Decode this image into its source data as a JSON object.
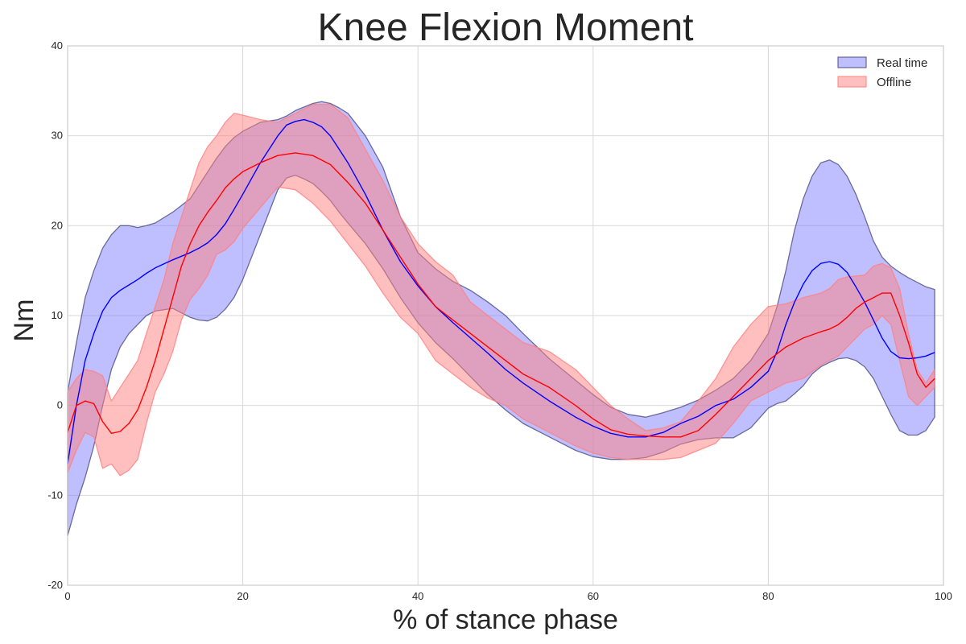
{
  "chart_data": {
    "type": "line",
    "title": "Knee Flexion Moment",
    "xlabel": "% of stance phase",
    "ylabel": "Nm",
    "xlim": [
      0,
      100
    ],
    "ylim": [
      -20,
      40
    ],
    "xticks": [
      0,
      20,
      40,
      60,
      80,
      100
    ],
    "yticks": [
      -20,
      -10,
      0,
      10,
      20,
      30,
      40
    ],
    "grid": true,
    "legend_position": "top-right",
    "series": [
      {
        "name": "Real time",
        "fill_color": "#7f7fff",
        "edge_color": "#4d4d80",
        "line_color": "#0000ff",
        "x": [
          0,
          1,
          2,
          3,
          4,
          5,
          6,
          7,
          8,
          9,
          10,
          12,
          14,
          15,
          16,
          17,
          18,
          19,
          20,
          22,
          24,
          25,
          26,
          27,
          28,
          29,
          30,
          31,
          32,
          34,
          36,
          38,
          40,
          42,
          44,
          46,
          48,
          50,
          52,
          55,
          58,
          60,
          62,
          64,
          66,
          68,
          70,
          72,
          74,
          76,
          78,
          80,
          81,
          82,
          83,
          84,
          85,
          86,
          87,
          88,
          89,
          90,
          91,
          92,
          93,
          94,
          95,
          96,
          97,
          98,
          99
        ],
        "mean": [
          -6.5,
          0,
          5,
          8,
          10.5,
          12,
          12.8,
          13.4,
          14,
          14.7,
          15.3,
          16.2,
          17,
          17.5,
          18.1,
          19,
          20.2,
          21.8,
          23.5,
          27,
          30,
          31.2,
          31.6,
          31.8,
          31.5,
          31,
          30,
          28.5,
          27,
          23.5,
          19.5,
          16,
          13.3,
          11,
          9.2,
          7.5,
          5.8,
          4,
          2.5,
          0.5,
          -1.3,
          -2.3,
          -3.1,
          -3.5,
          -3.5,
          -3,
          -2,
          -1.2,
          0,
          0.7,
          2,
          3.8,
          6,
          9,
          11.5,
          13.5,
          15,
          15.8,
          16,
          15.7,
          14.8,
          13.2,
          11.5,
          9.5,
          7.5,
          6,
          5.3,
          5.2,
          5.3,
          5.5,
          5.9
        ],
        "upper": [
          1.5,
          7,
          12,
          15,
          17.5,
          19,
          20,
          20,
          19.8,
          20,
          20.3,
          21.5,
          23,
          24.5,
          26,
          27.5,
          28.8,
          29.8,
          30.5,
          31.5,
          31.8,
          32.2,
          32.8,
          33.2,
          33.6,
          33.8,
          33.6,
          33.1,
          32.5,
          30,
          26.5,
          21,
          17,
          15.2,
          13.8,
          12.8,
          11.5,
          10,
          8,
          5.2,
          2.8,
          1.2,
          -0.2,
          -1,
          -1.3,
          -0.8,
          -0.2,
          0.6,
          1.7,
          3,
          5,
          8,
          11,
          15,
          19.5,
          23,
          25.5,
          27,
          27.3,
          26.8,
          25.5,
          23.5,
          21,
          18.3,
          16.5,
          15.5,
          14.8,
          14.2,
          13.7,
          13.2,
          12.9
        ],
        "lower": [
          -14.5,
          -11,
          -8,
          -4.5,
          0,
          4,
          6.5,
          8,
          9,
          10,
          10.5,
          10.8,
          9.8,
          9.5,
          9.4,
          9.8,
          10.7,
          12,
          14,
          19,
          24,
          25.3,
          25.6,
          25.2,
          24.7,
          23.8,
          22.8,
          21.5,
          20.3,
          18,
          15.2,
          12,
          9.2,
          7,
          5.2,
          3.2,
          1.2,
          -0.5,
          -2,
          -3.5,
          -5,
          -5.7,
          -6,
          -6,
          -5.8,
          -5.2,
          -4.3,
          -3.8,
          -3.6,
          -3.6,
          -2.5,
          -0.3,
          0.2,
          0.5,
          1.3,
          2.2,
          3.5,
          4.3,
          4.8,
          5.2,
          5.3,
          5,
          4.3,
          3,
          1,
          -1,
          -2.8,
          -3.3,
          -3.3,
          -2.8,
          -1.3
        ]
      },
      {
        "name": "Offline",
        "fill_color": "#ff7f7f",
        "edge_color": "#ff7f7f",
        "line_color": "#ff0000",
        "x": [
          0,
          1,
          2,
          3,
          4,
          5,
          6,
          7,
          8,
          9,
          10,
          11,
          12,
          13,
          14,
          15,
          16,
          17,
          18,
          19,
          20,
          22,
          24,
          26,
          28,
          30,
          32,
          34,
          36,
          38,
          40,
          42,
          44,
          46,
          48,
          50,
          52,
          55,
          58,
          60,
          62,
          64,
          66,
          68,
          70,
          72,
          74,
          76,
          78,
          80,
          82,
          84,
          86,
          87,
          88,
          89,
          90,
          91,
          92,
          93,
          94,
          95,
          96,
          97,
          98,
          99
        ],
        "mean": [
          -3,
          0,
          0.5,
          0.2,
          -1.8,
          -3.1,
          -2.9,
          -2,
          -0.5,
          2,
          5,
          8.5,
          12,
          15.5,
          18,
          20,
          21.5,
          22.8,
          24.2,
          25.2,
          26,
          27,
          27.8,
          28.1,
          27.8,
          26.8,
          24.8,
          22.5,
          19.5,
          16.5,
          13.5,
          11,
          9.5,
          8,
          6.5,
          5,
          3.5,
          2,
          0,
          -1.5,
          -2.7,
          -3.2,
          -3.4,
          -3.5,
          -3.5,
          -2.8,
          -1,
          1,
          3,
          5,
          6.5,
          7.5,
          8.2,
          8.5,
          9,
          9.8,
          10.8,
          11.5,
          12,
          12.5,
          12.5,
          10,
          7,
          3.5,
          2,
          3
        ],
        "upper": [
          1.5,
          3,
          4,
          3.8,
          3.3,
          0.5,
          2,
          3.5,
          5,
          8,
          11,
          14,
          18,
          21,
          24,
          27,
          28.8,
          30,
          31.5,
          32.5,
          32.3,
          31.8,
          31.5,
          32.5,
          33.5,
          33.5,
          32,
          28.5,
          25,
          21,
          18,
          16,
          14.5,
          11.5,
          10,
          8.5,
          7,
          6,
          4,
          2,
          0,
          -1.5,
          -2.8,
          -2.5,
          -1.8,
          0.5,
          3,
          6.5,
          9,
          11,
          11.3,
          12,
          12.5,
          13,
          14,
          14.3,
          14.4,
          14.5,
          15.5,
          15.8,
          15.3,
          13,
          8,
          4,
          2.5,
          4
        ],
        "lower": [
          -7.5,
          -5,
          -3,
          -3.5,
          -7,
          -6.5,
          -7.8,
          -7.2,
          -6,
          -2,
          1.5,
          3.5,
          6,
          9.5,
          11.8,
          13,
          14.5,
          16.8,
          17.3,
          18.2,
          19.7,
          22,
          24.3,
          24,
          22.5,
          20.5,
          18,
          15.5,
          12.5,
          9.8,
          8,
          5,
          3.5,
          2,
          0.8,
          0,
          -1.5,
          -3,
          -4.5,
          -5.3,
          -5.8,
          -6,
          -6,
          -6,
          -5.8,
          -5,
          -4.2,
          -2,
          0.5,
          1.5,
          2.5,
          3,
          4.5,
          5,
          5.5,
          6.5,
          7.5,
          8.5,
          9,
          10,
          9,
          5,
          1,
          0,
          1,
          2
        ]
      }
    ]
  }
}
